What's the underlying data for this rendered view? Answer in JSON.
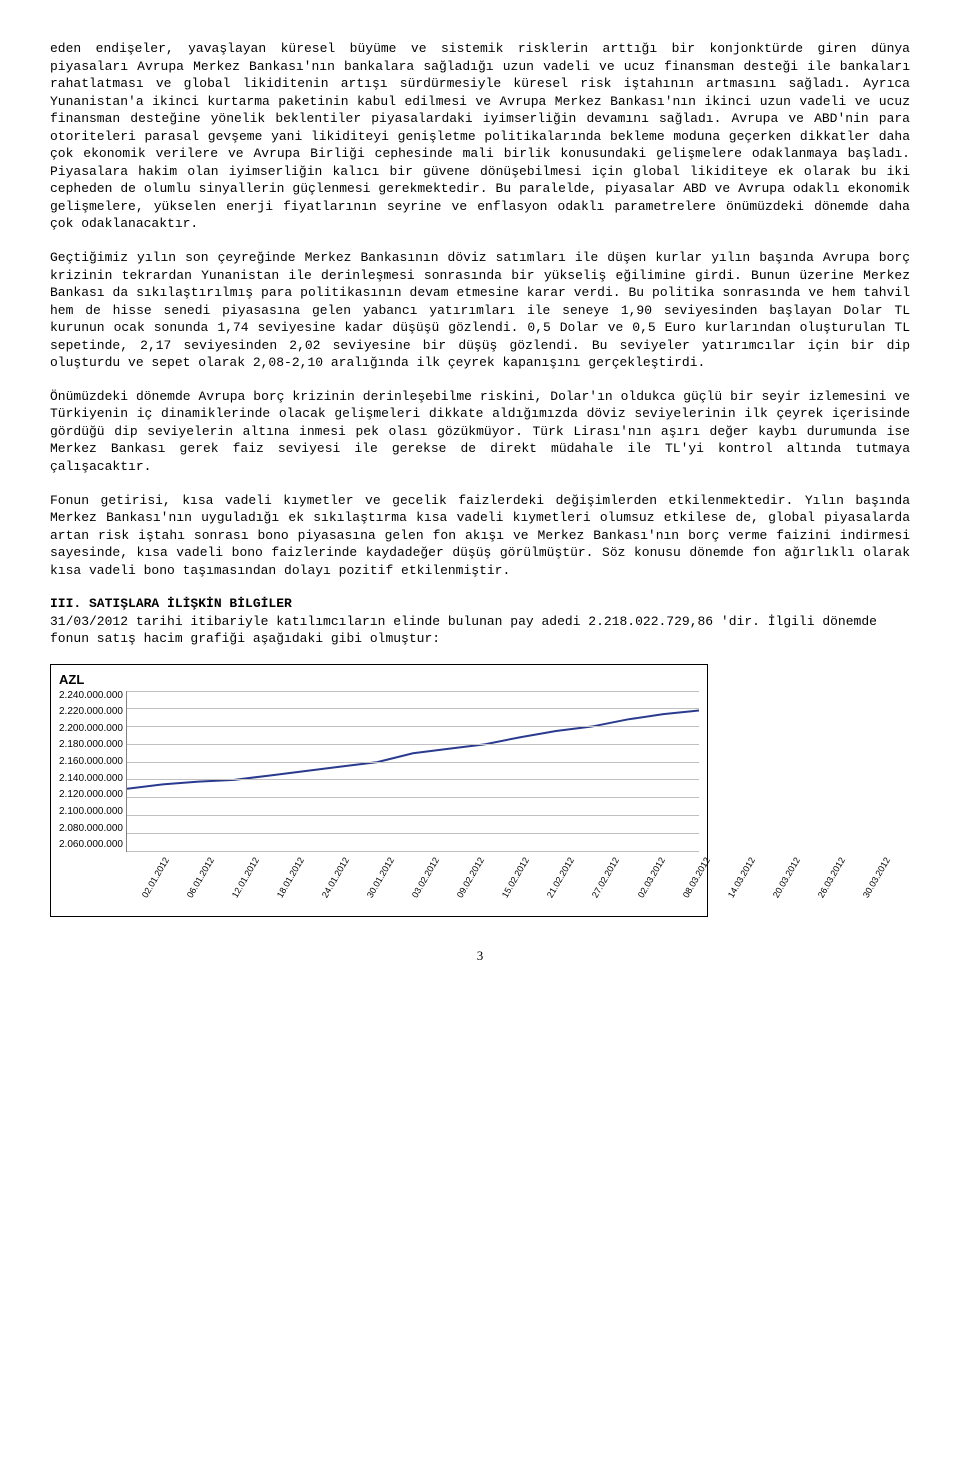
{
  "paragraphs": {
    "p1": "eden endişeler, yavaşlayan küresel büyüme ve sistemik risklerin arttığı bir konjonktürde giren dünya piyasaları Avrupa Merkez Bankası'nın bankalara sağladığı uzun vadeli ve ucuz finansman desteği ile bankaları rahatlatması ve global likiditenin artışı sürdürmesiyle küresel risk iştahının artmasını sağladı. Ayrıca Yunanistan'a ikinci kurtarma paketinin kabul edilmesi ve Avrupa Merkez Bankası'nın ikinci uzun vadeli ve ucuz finansman desteğine yönelik beklentiler piyasalardaki iyimserliğin devamını sağladı. Avrupa ve ABD'nin para otoriteleri parasal gevşeme yani likiditeyi genişletme politikalarında bekleme moduna geçerken dikkatler daha çok ekonomik verilere ve Avrupa Birliği cephesinde mali birlik konusundaki gelişmelere odaklanmaya başladı. Piyasalara hakim olan iyimserliğin kalıcı bir güvene dönüşebilmesi için global likiditeye ek olarak bu iki cepheden de olumlu sinyallerin güçlenmesi gerekmektedir. Bu paralelde, piyasalar ABD ve Avrupa odaklı ekonomik gelişmelere, yükselen enerji fiyatlarının seyrine ve enflasyon odaklı parametrelere önümüzdeki dönemde daha çok odaklanacaktır.",
    "p2": "Geçtiğimiz yılın son çeyreğinde Merkez Bankasının döviz satımları ile düşen kurlar yılın başında Avrupa borç krizinin tekrardan Yunanistan ile derinleşmesi sonrasında bir yükseliş eğilimine girdi. Bunun üzerine Merkez Bankası da sıkılaştırılmış para politikasının devam etmesine karar verdi. Bu politika sonrasında ve hem tahvil hem de hisse senedi piyasasına gelen yabancı yatırımları ile seneye 1,90 seviyesinden başlayan Dolar TL kurunun ocak sonunda 1,74 seviyesine kadar düşüşü gözlendi. 0,5 Dolar ve 0,5 Euro kurlarından oluşturulan TL sepetinde, 2,17 seviyesinden 2,02 seviyesine bir düşüş gözlendi. Bu seviyeler yatırımcılar için bir dip oluşturdu ve sepet olarak 2,08-2,10 aralığında ilk çeyrek kapanışını gerçekleştirdi.",
    "p3": "Önümüzdeki dönemde Avrupa borç krizinin derinleşebilme riskini, Dolar'ın oldukca güçlü bir seyir izlemesini ve Türkiyenin iç dinamiklerinde olacak gelişmeleri dikkate aldığımızda döviz seviyelerinin ilk çeyrek içerisinde gördüğü dip seviyelerin altına inmesi pek olası gözükmüyor. Türk Lirası'nın aşırı değer kaybı durumunda ise Merkez Bankası gerek faiz seviyesi ile gerekse de direkt müdahale ile TL'yi kontrol altında tutmaya çalışacaktır.",
    "p4": "Fonun getirisi, kısa vadeli kıymetler ve gecelik faizlerdeki değişimlerden etkilenmektedir. Yılın başında Merkez Bankası'nın uyguladığı ek sıkılaştırma kısa vadeli kıymetleri olumsuz etkilese de, global piyasalarda artan risk iştahı sonrası bono piyasasına gelen fon akışı ve Merkez Bankası'nın borç verme faizini indirmesi sayesinde, kısa vadeli bono faizlerinde kaydadeğer düşüş görülmüştür. Söz konusu dönemde fon ağırlıklı olarak kısa vadeli bono taşımasından dolayı pozitif etkilenmiştir."
  },
  "section3": {
    "head": "III. SATIŞLARA İLİŞKİN BİLGİLER",
    "sub": "31/03/2012 tarihi itibariyle katılımcıların elinde bulunan pay adedi 2.218.022.729,86 'dir. İlgili dönemde fonun satış hacim grafiği aşağıdaki gibi olmuştur:"
  },
  "chart": {
    "type": "line",
    "title": "AZL",
    "ylim": [
      2060000000,
      2240000000
    ],
    "ytick_step": 20000000,
    "y_labels": [
      "2.240.000.000",
      "2.220.000.000",
      "2.200.000.000",
      "2.180.000.000",
      "2.160.000.000",
      "2.140.000.000",
      "2.120.000.000",
      "2.100.000.000",
      "2.080.000.000",
      "2.060.000.000"
    ],
    "x_labels": [
      "02.01.2012",
      "06.01.2012",
      "12.01.2012",
      "18.01.2012",
      "24.01.2012",
      "30.01.2012",
      "03.02.2012",
      "09.02.2012",
      "15.02.2012",
      "21.02.2012",
      "27.02.2012",
      "02.03.2012",
      "08.03.2012",
      "14.03.2012",
      "20.03.2012",
      "26.03.2012",
      "30.03.2012"
    ],
    "values": [
      2130000000,
      2135000000,
      2138000000,
      2140000000,
      2145000000,
      2150000000,
      2155000000,
      2160000000,
      2170000000,
      2175000000,
      2180000000,
      2188000000,
      2195000000,
      2200000000,
      2208000000,
      2214000000,
      2218000000
    ],
    "line_color": "#2a3b8f",
    "line_width": 2,
    "grid_color": "#c0c0c0",
    "axis_color": "#808080",
    "background_color": "#ffffff",
    "label_fontsize": 10
  },
  "page_number": "3"
}
